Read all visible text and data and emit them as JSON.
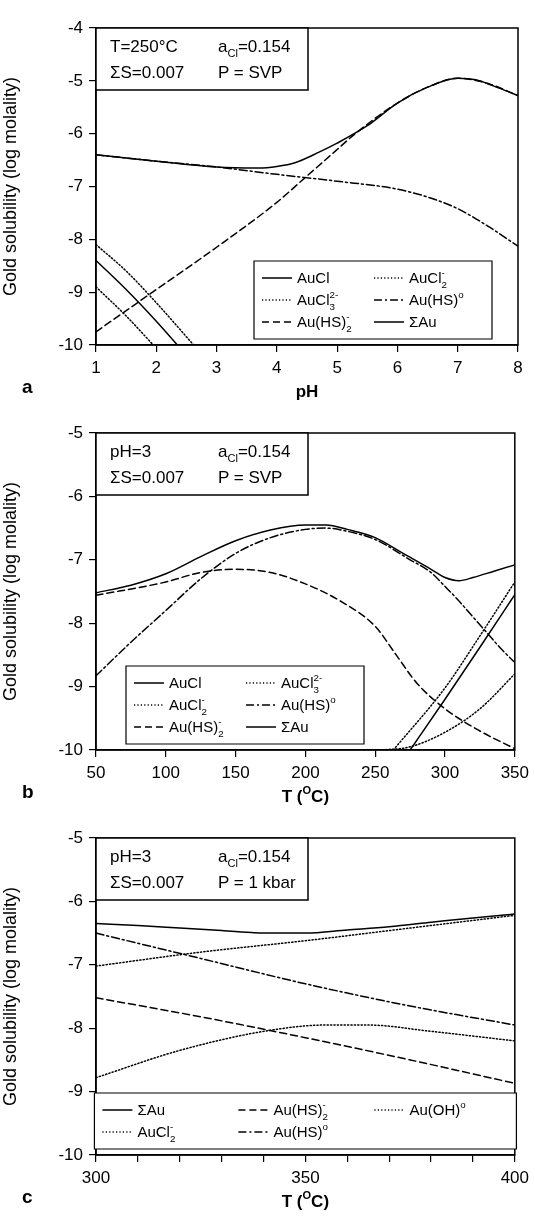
{
  "chart_data": [
    {
      "type": "line",
      "title": "a",
      "xlabel": "pH",
      "ylabel": "Gold solubility (log molality)",
      "xlim": [
        1,
        8
      ],
      "xticks": [
        1,
        2,
        3,
        4,
        5,
        6,
        7,
        8
      ],
      "ylim": [
        -10,
        -4
      ],
      "yticks": [
        -10,
        -9,
        -8,
        -7,
        -6,
        -5,
        -4
      ],
      "grid": false,
      "legend": "bottom right",
      "marker": "none",
      "annotations": [
        "T=250°C",
        "a$_{Cl}$=0.154",
        "ΣS=0.007",
        "P = SVP"
      ],
      "series": [
        {
          "name": "AuCl",
          "color": "#000000",
          "line_style": "solid",
          "x": [
            1,
            1.5,
            2,
            2.35
          ],
          "values": [
            -8.4,
            -8.95,
            -9.55,
            -10
          ]
        },
        {
          "name": "AuCl$_{2}$$^{-}$",
          "color": "#000000",
          "line_style": "dotted",
          "x": [
            1,
            1.5,
            2,
            2.62
          ],
          "values": [
            -8.1,
            -8.6,
            -9.2,
            -10
          ]
        },
        {
          "name": "AuCl$_{3}$$^{2-}$",
          "color": "#000000",
          "line_style": "dotted",
          "x": [
            1,
            1.5,
            1.95
          ],
          "values": [
            -8.9,
            -9.45,
            -10
          ]
        },
        {
          "name": "Au(HS)$^{o}$",
          "color": "#000000",
          "line_style": "dashdot",
          "x": [
            1,
            2,
            3,
            4,
            5,
            6,
            6.5,
            7,
            7.5,
            8
          ],
          "values": [
            -6.4,
            -6.52,
            -6.63,
            -6.77,
            -6.9,
            -7.05,
            -7.2,
            -7.42,
            -7.75,
            -8.13
          ]
        },
        {
          "name": "Au(HS)$_{2}$$^{-}$",
          "color": "#000000",
          "line_style": "dashed",
          "x": [
            1,
            2,
            3,
            4,
            4.5,
            5,
            5.3,
            6,
            6.5,
            7,
            7.5,
            8
          ],
          "values": [
            -9.75,
            -8.95,
            -8.15,
            -7.3,
            -6.8,
            -6.3,
            -6.0,
            -5.42,
            -5.12,
            -4.95,
            -5.05,
            -5.28
          ]
        },
        {
          "name": "ΣAu",
          "color": "#000000",
          "line_style": "solid",
          "x": [
            1,
            2,
            3,
            3.7,
            4,
            4.3,
            4.7,
            5,
            5.5,
            6,
            6.5,
            7,
            7.3,
            7.6,
            8
          ],
          "values": [
            -6.4,
            -6.52,
            -6.63,
            -6.65,
            -6.62,
            -6.55,
            -6.35,
            -6.18,
            -5.85,
            -5.42,
            -5.12,
            -4.95,
            -4.98,
            -5.1,
            -5.28
          ]
        }
      ]
    },
    {
      "type": "line",
      "title": "b",
      "xlabel": "T ($^{O}$C)",
      "ylabel": "Gold solubility (log molality)",
      "xlim": [
        50,
        350
      ],
      "xticks": [
        50,
        100,
        150,
        200,
        250,
        300,
        350
      ],
      "ylim": [
        -10,
        -5
      ],
      "yticks": [
        -10,
        -9,
        -8,
        -7,
        -6,
        -5
      ],
      "grid": false,
      "legend": "bottom left",
      "marker": "none",
      "annotations": [
        "pH=3",
        "a$_{Cl}$=0.154",
        "ΣS=0.007",
        "P = SVP"
      ],
      "series": [
        {
          "name": "AuCl",
          "color": "#000000",
          "line_style": "solid",
          "x": [
            275,
            300,
            325,
            350
          ],
          "values": [
            -10,
            -9.2,
            -8.38,
            -7.55
          ]
        },
        {
          "name": "AuCl$_{3}$$^{2-}$",
          "color": "#000000",
          "line_style": "dotted",
          "x": [
            255,
            275,
            300,
            325,
            350
          ],
          "values": [
            -10,
            -9.95,
            -9.72,
            -9.35,
            -8.8
          ]
        },
        {
          "name": "AuCl$_{2}$$^{-}$",
          "color": "#000000",
          "line_style": "dotted",
          "x": [
            263,
            300,
            325,
            350
          ],
          "values": [
            -10,
            -9.02,
            -8.2,
            -7.35
          ]
        },
        {
          "name": "Au(HS)$^{o}$",
          "color": "#000000",
          "line_style": "dashdot",
          "x": [
            50,
            75,
            100,
            125,
            150,
            175,
            200,
            215,
            230,
            250,
            275,
            290,
            300,
            310,
            320,
            330,
            340,
            350
          ],
          "values": [
            -8.83,
            -8.3,
            -7.8,
            -7.3,
            -6.9,
            -6.65,
            -6.52,
            -6.5,
            -6.55,
            -6.68,
            -7.0,
            -7.2,
            -7.42,
            -7.65,
            -7.9,
            -8.15,
            -8.4,
            -8.62
          ]
        },
        {
          "name": "Au(HS)$_{2}$$^{-}$",
          "color": "#000000",
          "line_style": "dashed",
          "x": [
            50,
            100,
            125,
            150,
            175,
            200,
            225,
            250,
            265,
            280,
            300,
            325,
            350
          ],
          "values": [
            -7.56,
            -7.35,
            -7.2,
            -7.15,
            -7.2,
            -7.38,
            -7.65,
            -8.05,
            -8.5,
            -8.95,
            -9.35,
            -9.7,
            -9.98
          ]
        },
        {
          "name": "ΣAu",
          "color": "#000000",
          "line_style": "solid",
          "x": [
            50,
            75,
            100,
            125,
            150,
            175,
            200,
            215,
            230,
            250,
            270,
            290,
            300,
            310,
            320,
            335,
            350
          ],
          "values": [
            -7.52,
            -7.4,
            -7.22,
            -6.95,
            -6.7,
            -6.53,
            -6.45,
            -6.45,
            -6.52,
            -6.65,
            -6.9,
            -7.15,
            -7.28,
            -7.33,
            -7.28,
            -7.18,
            -7.08
          ]
        }
      ]
    },
    {
      "type": "line",
      "title": "c",
      "xlabel": "T ($^{O}$C)",
      "ylabel": "Gold solubility (log molality)",
      "xlim": [
        300,
        400
      ],
      "xticks": [
        300,
        {
          "value": 310,
          "label": null
        },
        {
          "value": 320,
          "label": null
        },
        {
          "value": 330,
          "label": null
        },
        {
          "value": 340,
          "label": null
        },
        350,
        {
          "value": 360,
          "label": null
        },
        {
          "value": 370,
          "label": null
        },
        {
          "value": 380,
          "label": null
        },
        {
          "value": 390,
          "label": null
        },
        400
      ],
      "ylim": [
        -10,
        -5
      ],
      "yticks": [
        -10,
        -9,
        -8,
        -7,
        -6,
        -5
      ],
      "grid": false,
      "legend": "bottom",
      "marker": "none",
      "annotations": [
        "pH=3",
        "a$_{Cl}$=0.154",
        "ΣS=0.007",
        "P = 1 kbar"
      ],
      "series": [
        {
          "name": "ΣAu",
          "color": "#000000",
          "line_style": "solid",
          "x": [
            300,
            310,
            320,
            330,
            340,
            350,
            360,
            370,
            380,
            390,
            400
          ],
          "values": [
            -6.35,
            -6.38,
            -6.42,
            -6.46,
            -6.5,
            -6.5,
            -6.45,
            -6.4,
            -6.33,
            -6.26,
            -6.2
          ]
        },
        {
          "name": "Au(HS)$_{2}$$^{-}$",
          "color": "#000000",
          "line_style": "dashed",
          "x": [
            300,
            325,
            350,
            375,
            400
          ],
          "values": [
            -7.52,
            -7.82,
            -8.15,
            -8.5,
            -8.87
          ]
        },
        {
          "name": "Au(OH)$^{o}$",
          "color": "#000000",
          "line_style": "dotted",
          "x": [
            300,
            325,
            350,
            375,
            400
          ],
          "values": [
            -7.02,
            -6.8,
            -6.62,
            -6.42,
            -6.22
          ]
        },
        {
          "name": "AuCl$_{2}$$^{-}$",
          "color": "#000000",
          "line_style": "dotted",
          "x": [
            300,
            320,
            340,
            355,
            365,
            380,
            400
          ],
          "values": [
            -8.78,
            -8.35,
            -8.05,
            -7.95,
            -7.95,
            -8.05,
            -8.2
          ]
        },
        {
          "name": "Au(HS)$^{o}$",
          "color": "#000000",
          "line_style": "dashdot",
          "x": [
            300,
            325,
            350,
            375,
            400
          ],
          "values": [
            -6.5,
            -6.9,
            -7.3,
            -7.65,
            -7.95
          ]
        }
      ]
    }
  ]
}
